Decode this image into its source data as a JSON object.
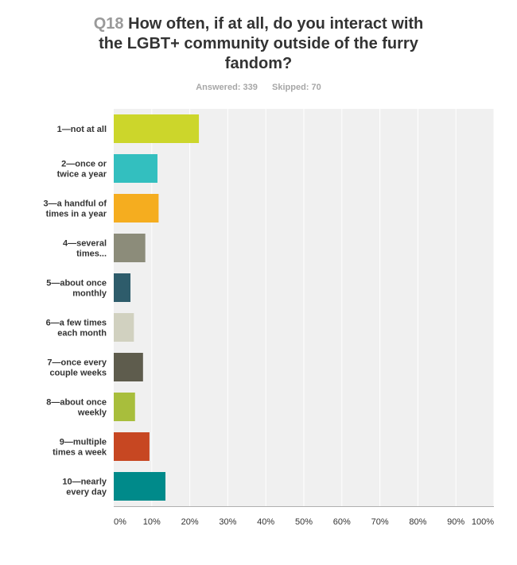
{
  "question": {
    "number": "Q18",
    "text": "How often, if at all, do you interact with\nthe LGBT+ community outside of the furry\nfandom?",
    "answered_label": "Answered:",
    "answered": "339",
    "skipped_label": "Skipped:",
    "skipped": "70"
  },
  "chart_data": {
    "type": "bar",
    "orientation": "horizontal",
    "categories": [
      [
        "1—not at all"
      ],
      [
        "2—once or",
        "twice a year"
      ],
      [
        "3—a handful of",
        "times in a year"
      ],
      [
        "4—several",
        "times..."
      ],
      [
        "5—about once",
        "monthly"
      ],
      [
        "6—a few times",
        "each month"
      ],
      [
        "7—once every",
        "couple weeks"
      ],
      [
        "8—about once",
        "weekly"
      ],
      [
        "9—multiple",
        "times a week"
      ],
      [
        "10—nearly",
        "every day"
      ]
    ],
    "values": [
      22.4,
      11.5,
      11.8,
      8.3,
      4.4,
      5.3,
      7.7,
      5.6,
      9.4,
      13.6
    ],
    "colors": [
      "#ccd62b",
      "#33bfbf",
      "#f5ad1f",
      "#8c8c7a",
      "#2e5c6b",
      "#d1d1c0",
      "#5e5c4d",
      "#a8be3c",
      "#c74722",
      "#008a8a"
    ],
    "xlim": [
      0,
      100
    ],
    "ticks": [
      "0%",
      "10%",
      "20%",
      "30%",
      "40%",
      "50%",
      "60%",
      "70%",
      "80%",
      "90%",
      "100%"
    ],
    "grid": true,
    "background": "#f0f0f0"
  }
}
